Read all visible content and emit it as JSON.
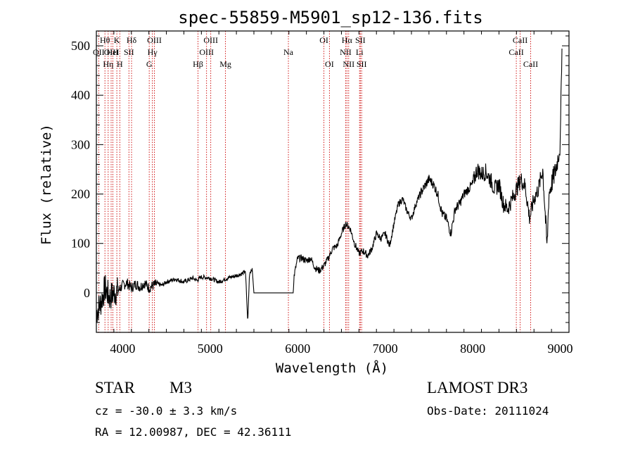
{
  "chart_data": {
    "type": "line",
    "title": "spec-55859-M5901_sp12-136.fits",
    "xlabel": "Wavelength (Å)",
    "ylabel": "Flux (relative)",
    "xlim": [
      3700,
      9100
    ],
    "ylim": [
      -80,
      530
    ],
    "x_ticks": [
      4000,
      5000,
      6000,
      7000,
      8000,
      9000
    ],
    "y_ticks": [
      0,
      100,
      200,
      300,
      400,
      500
    ],
    "line_color": "#000000",
    "marker_color": "#cc0000",
    "series": [
      {
        "name": "flux",
        "x": [
          3700,
          3750,
          3800,
          3850,
          3900,
          3950,
          4000,
          4050,
          4100,
          4150,
          4200,
          4250,
          4300,
          4350,
          4400,
          4450,
          4500,
          4600,
          4700,
          4800,
          4850,
          4900,
          5000,
          5100,
          5200,
          5300,
          5380,
          5400,
          5410,
          5430,
          5450,
          5480,
          5500,
          5700,
          5950,
          5960,
          6000,
          6050,
          6100,
          6150,
          6200,
          6250,
          6300,
          6350,
          6400,
          6450,
          6500,
          6550,
          6600,
          6650,
          6700,
          6750,
          6800,
          6850,
          6900,
          6950,
          7000,
          7050,
          7100,
          7150,
          7200,
          7250,
          7300,
          7350,
          7400,
          7450,
          7500,
          7550,
          7600,
          7650,
          7700,
          7750,
          7800,
          7850,
          7900,
          7950,
          8000,
          8050,
          8100,
          8150,
          8200,
          8250,
          8300,
          8350,
          8400,
          8450,
          8500,
          8550,
          8600,
          8650,
          8700,
          8750,
          8800,
          8850,
          8870,
          8900,
          8950,
          9000,
          9020
        ],
        "y": [
          -40,
          -20,
          10,
          -10,
          0,
          5,
          15,
          20,
          10,
          18,
          12,
          20,
          10,
          15,
          18,
          15,
          22,
          28,
          22,
          30,
          25,
          32,
          30,
          22,
          30,
          35,
          40,
          45,
          20,
          -60,
          40,
          50,
          0,
          0,
          0,
          35,
          70,
          70,
          65,
          70,
          50,
          45,
          55,
          70,
          90,
          95,
          120,
          140,
          130,
          100,
          80,
          85,
          75,
          90,
          120,
          110,
          120,
          95,
          140,
          180,
          190,
          165,
          150,
          180,
          200,
          215,
          230,
          220,
          200,
          160,
          150,
          120,
          170,
          180,
          200,
          210,
          220,
          250,
          240,
          245,
          230,
          210,
          220,
          180,
          170,
          190,
          210,
          230,
          215,
          150,
          190,
          210,
          250,
          90,
          200,
          220,
          250,
          300,
          510
        ]
      }
    ],
    "spectral_lines": [
      {
        "label": "OII",
        "wavelength": 3727,
        "row": 2
      },
      {
        "label": "Hθ",
        "wavelength": 3798,
        "row": 1
      },
      {
        "label": "OIII",
        "wavelength": 3869,
        "row": 2
      },
      {
        "label": "Hη",
        "wavelength": 3835,
        "row": 3
      },
      {
        "label": "HeI",
        "wavelength": 3889,
        "row": 2
      },
      {
        "label": "K",
        "wavelength": 3934,
        "row": 1
      },
      {
        "label": "SII",
        "wavelength": 4072,
        "row": 2
      },
      {
        "label": "H",
        "wavelength": 3968,
        "row": 3
      },
      {
        "label": "Hδ",
        "wavelength": 4102,
        "row": 1
      },
      {
        "label": "G",
        "wavelength": 4304,
        "row": 3
      },
      {
        "label": "Hγ",
        "wavelength": 4340,
        "row": 2
      },
      {
        "label": "OIII",
        "wavelength": 4363,
        "row": 1
      },
      {
        "label": "Hβ",
        "wavelength": 4861,
        "row": 3
      },
      {
        "label": "OIII",
        "wavelength": 4959,
        "row": 2
      },
      {
        "label": "OIII",
        "wavelength": 5007,
        "row": 1
      },
      {
        "label": "Mg",
        "wavelength": 5175,
        "row": 3
      },
      {
        "label": "Na",
        "wavelength": 5894,
        "row": 2
      },
      {
        "label": "OI",
        "wavelength": 6300,
        "row": 1
      },
      {
        "label": "OI",
        "wavelength": 6363,
        "row": 3
      },
      {
        "label": "NII",
        "wavelength": 6548,
        "row": 2
      },
      {
        "label": "Hα",
        "wavelength": 6563,
        "row": 1
      },
      {
        "label": "NII",
        "wavelength": 6583,
        "row": 3
      },
      {
        "label": "Li",
        "wavelength": 6707,
        "row": 2
      },
      {
        "label": "SII",
        "wavelength": 6716,
        "row": 1
      },
      {
        "label": "SII",
        "wavelength": 6731,
        "row": 3
      },
      {
        "label": "CaII",
        "wavelength": 8498,
        "row": 2
      },
      {
        "label": "CaII",
        "wavelength": 8542,
        "row": 1
      },
      {
        "label": "CaII",
        "wavelength": 8662,
        "row": 3
      }
    ]
  },
  "info": {
    "object_class": "STAR",
    "subclass": "M3",
    "survey": "LAMOST DR3",
    "redshift": "cz = -30.0 ± 3.3 km/s",
    "obs_date": "Obs-Date: 20111024",
    "coords": "RA =  12.00987, DEC =  42.36111"
  }
}
